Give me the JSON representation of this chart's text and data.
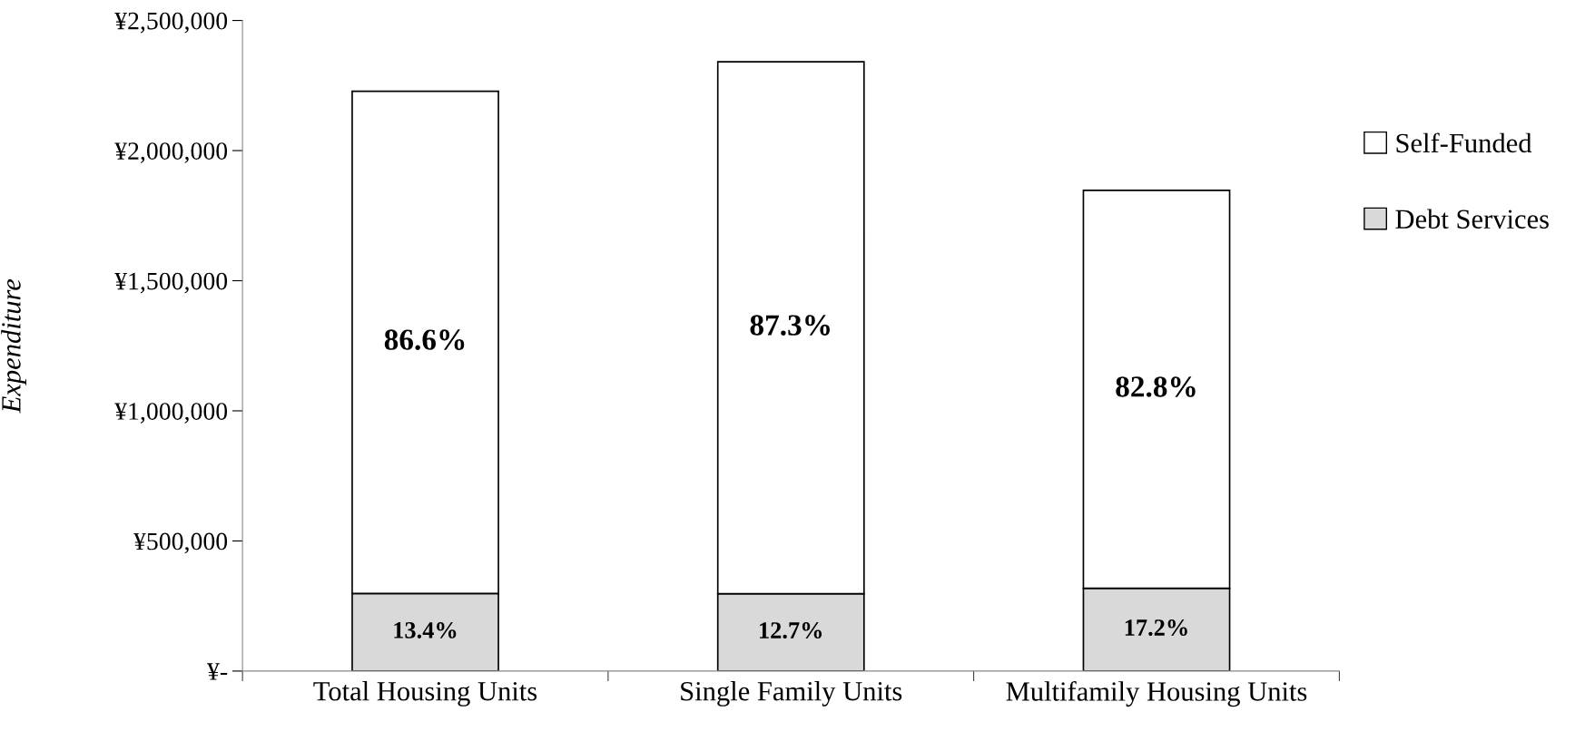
{
  "chart_data": {
    "type": "bar",
    "stacked": true,
    "ylabel": "Expenditure",
    "categories": [
      "Total Housing Units",
      "Single Family Units",
      "Multifamily Housing Units"
    ],
    "series": [
      {
        "name": "Debt Services",
        "color": "#d9d9d9",
        "values": [
          298000,
          297000,
          318000
        ]
      },
      {
        "name": "Self-Funded",
        "color": "#ffffff",
        "values": [
          1930000,
          2044000,
          1529000
        ]
      }
    ],
    "annotations": [
      "13.4%",
      "86.6%",
      "12.7%",
      "87.3%",
      "17.2%",
      "82.8%"
    ],
    "ylim": [
      0,
      2500000
    ],
    "yticks": [
      {
        "value": 0,
        "label": "¥-"
      },
      {
        "value": 500000,
        "label": "¥500,000"
      },
      {
        "value": 1000000,
        "label": "¥1,000,000"
      },
      {
        "value": 1500000,
        "label": "¥1,500,000"
      },
      {
        "value": 2000000,
        "label": "¥2,000,000"
      },
      {
        "value": 2500000,
        "label": "¥2,500,000"
      }
    ],
    "grid": false,
    "legend": "right"
  }
}
